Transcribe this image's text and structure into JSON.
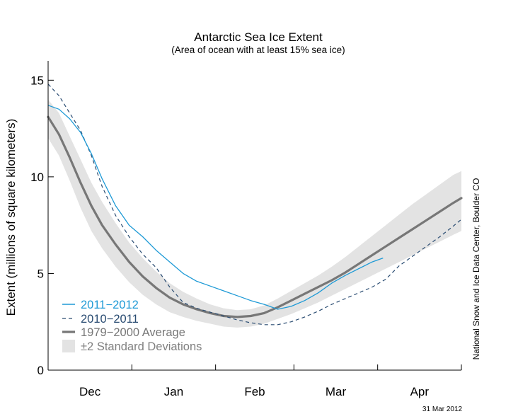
{
  "chart_data": {
    "type": "line",
    "title": "Antarctic Sea Ice Extent",
    "subtitle": "(Area of ocean with at least 15% sea ice)",
    "ylabel": "Extent (millions of square kilometers)",
    "xlabel": "",
    "ylim": [
      0,
      16
    ],
    "xlim": [
      0,
      153
    ],
    "y_ticks": [
      0,
      5,
      10,
      15
    ],
    "x_ticks": [
      0,
      31,
      62,
      91,
      122,
      153
    ],
    "month_labels": [
      {
        "label": "Dec",
        "x": 15.5
      },
      {
        "label": "Jan",
        "x": 46.5
      },
      {
        "label": "Feb",
        "x": 76.5
      },
      {
        "label": "Mar",
        "x": 106.5
      },
      {
        "label": "Apr",
        "x": 137.5
      }
    ],
    "credit": "National Snow and Ice Data Center, Boulder CO",
    "date_stamp": "31 Mar 2012",
    "grid": false,
    "legend_position": "bottom-left",
    "series": [
      {
        "name": "2011−2012",
        "style": "solid",
        "color": "#1e9ad6",
        "x": [
          0,
          4,
          8,
          12,
          16,
          20,
          25,
          30,
          35,
          40,
          45,
          50,
          55,
          60,
          65,
          70,
          75,
          80,
          85,
          90,
          95,
          100,
          105,
          110,
          115,
          120,
          124
        ],
        "values": [
          13.7,
          13.5,
          13.0,
          12.3,
          11.2,
          9.9,
          8.5,
          7.5,
          6.9,
          6.2,
          5.6,
          5.0,
          4.6,
          4.35,
          4.1,
          3.85,
          3.6,
          3.4,
          3.15,
          3.3,
          3.6,
          4.0,
          4.5,
          4.9,
          5.25,
          5.6,
          5.8
        ]
      },
      {
        "name": "2010−2011",
        "style": "dashed",
        "color": "#2a4c72",
        "x": [
          0,
          4,
          8,
          12,
          16,
          20,
          25,
          30,
          35,
          40,
          45,
          50,
          55,
          60,
          65,
          70,
          75,
          80,
          85,
          90,
          95,
          100,
          105,
          110,
          115,
          120,
          125,
          130,
          135,
          140,
          145,
          150,
          153
        ],
        "values": [
          14.8,
          14.2,
          13.3,
          12.4,
          11.1,
          9.5,
          8.0,
          6.9,
          6.0,
          5.3,
          4.3,
          3.5,
          3.2,
          3.0,
          2.8,
          2.6,
          2.45,
          2.35,
          2.35,
          2.5,
          2.75,
          3.05,
          3.4,
          3.7,
          4.0,
          4.3,
          4.7,
          5.4,
          5.9,
          6.4,
          6.9,
          7.45,
          7.8
        ]
      },
      {
        "name": "1979−2000 Average",
        "style": "thick",
        "color": "#777777",
        "x": [
          0,
          4,
          8,
          12,
          16,
          20,
          25,
          30,
          35,
          40,
          45,
          50,
          55,
          60,
          65,
          70,
          75,
          80,
          85,
          90,
          95,
          100,
          105,
          110,
          115,
          120,
          125,
          130,
          135,
          140,
          145,
          150,
          153
        ],
        "values": [
          13.1,
          12.2,
          11.0,
          9.7,
          8.5,
          7.5,
          6.5,
          5.6,
          4.85,
          4.25,
          3.75,
          3.4,
          3.15,
          2.95,
          2.8,
          2.75,
          2.8,
          2.95,
          3.25,
          3.6,
          3.95,
          4.3,
          4.65,
          5.05,
          5.5,
          5.95,
          6.4,
          6.85,
          7.3,
          7.75,
          8.2,
          8.65,
          8.9
        ]
      },
      {
        "name": "±2 Standard Deviations",
        "style": "band",
        "color": "#e3e3e3",
        "x": [
          0,
          4,
          8,
          12,
          16,
          20,
          25,
          30,
          35,
          40,
          45,
          50,
          55,
          60,
          65,
          70,
          75,
          80,
          85,
          90,
          95,
          100,
          105,
          110,
          115,
          120,
          125,
          130,
          135,
          140,
          145,
          150,
          153
        ],
        "upper": [
          14.0,
          13.3,
          12.1,
          10.9,
          9.7,
          8.7,
          7.6,
          6.6,
          5.8,
          5.1,
          4.5,
          4.05,
          3.7,
          3.4,
          3.2,
          3.1,
          3.15,
          3.35,
          3.7,
          4.1,
          4.5,
          4.9,
          5.35,
          5.85,
          6.4,
          6.95,
          7.5,
          8.05,
          8.6,
          9.1,
          9.6,
          10.1,
          10.3
        ],
        "lower": [
          12.0,
          11.1,
          9.8,
          8.4,
          7.2,
          6.3,
          5.35,
          4.55,
          3.9,
          3.4,
          3.0,
          2.75,
          2.55,
          2.4,
          2.25,
          2.2,
          2.25,
          2.4,
          2.65,
          2.9,
          3.2,
          3.5,
          3.85,
          4.2,
          4.55,
          4.9,
          5.25,
          5.6,
          5.95,
          6.3,
          6.65,
          7.0,
          7.2
        ]
      }
    ]
  }
}
